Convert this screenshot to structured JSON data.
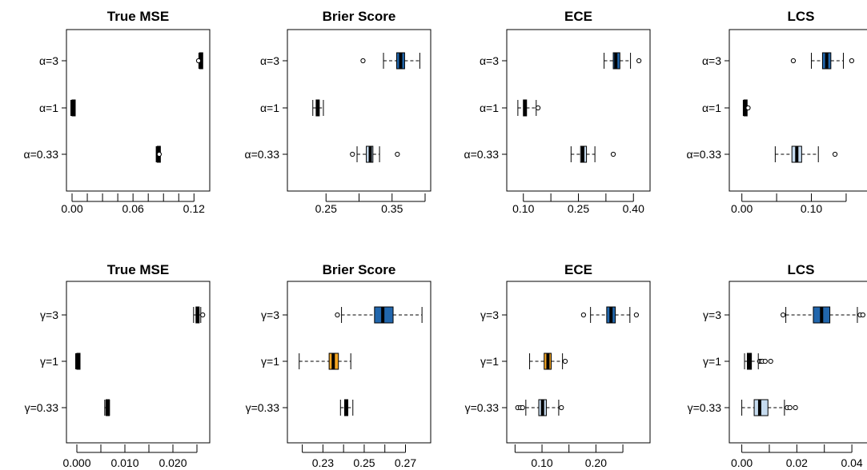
{
  "chart_data": [
    {
      "type": "boxplot",
      "orientation": "horizontal",
      "title": "True MSE",
      "categories": [
        "α=3",
        "α=1",
        "α=0.33"
      ],
      "xlim": [
        0.0,
        0.13
      ],
      "xticks": [
        0.0,
        0.03,
        0.06,
        0.09,
        0.12
      ],
      "xtick_labels": [
        "0.00",
        "",
        "0.06",
        "",
        "0.12"
      ],
      "xtick_minor": [
        0.015,
        0.045,
        0.075,
        0.105
      ],
      "boxes": [
        {
          "category": "α=3",
          "min": 0.125,
          "q1": 0.1255,
          "median": 0.126,
          "q3": 0.1265,
          "max": 0.127,
          "outliers": [
            0.1245
          ],
          "fill": "#000000"
        },
        {
          "category": "α=1",
          "min": 0.0,
          "q1": 0.0,
          "median": 0.0,
          "q3": 0.0,
          "max": 0.0,
          "outliers": [],
          "fill": "#000000"
        },
        {
          "category": "α=0.33",
          "min": 0.0835,
          "q1": 0.0838,
          "median": 0.084,
          "q3": 0.0843,
          "max": 0.0846,
          "outliers": [
            0.0858
          ],
          "fill": "#000000"
        }
      ]
    },
    {
      "type": "boxplot",
      "orientation": "horizontal",
      "title": "Brier Score",
      "categories": [
        "α=3",
        "α=1",
        "α=0.33"
      ],
      "xlim": [
        0.2,
        0.4
      ],
      "xticks": [
        0.25,
        0.3,
        0.35,
        0.4
      ],
      "xtick_labels": [
        "0.25",
        "",
        "0.35",
        ""
      ],
      "xtick_minor": [],
      "boxes": [
        {
          "category": "α=3",
          "min": 0.337,
          "q1": 0.357,
          "median": 0.363,
          "q3": 0.369,
          "max": 0.392,
          "outliers": [
            0.306
          ],
          "fill": "#2166ac"
        },
        {
          "category": "α=1",
          "min": 0.23,
          "q1": 0.235,
          "median": 0.237,
          "q3": 0.239,
          "max": 0.246,
          "outliers": [],
          "fill": "#000000"
        },
        {
          "category": "α=0.33",
          "min": 0.297,
          "q1": 0.311,
          "median": 0.317,
          "q3": 0.321,
          "max": 0.331,
          "outliers": [
            0.29,
            0.358
          ],
          "fill": "#c6dbef"
        }
      ]
    },
    {
      "type": "boxplot",
      "orientation": "horizontal",
      "title": "ECE",
      "categories": [
        "α=3",
        "α=1",
        "α=0.33"
      ],
      "xlim": [
        0.07,
        0.43
      ],
      "xticks": [
        0.1,
        0.175,
        0.25,
        0.325,
        0.4
      ],
      "xtick_labels": [
        "0.10",
        "",
        "0.25",
        "",
        "0.40"
      ],
      "xtick_minor": [],
      "boxes": [
        {
          "category": "α=3",
          "min": 0.32,
          "q1": 0.345,
          "median": 0.352,
          "q3": 0.363,
          "max": 0.392,
          "outliers": [
            0.415
          ],
          "fill": "#2166ac"
        },
        {
          "category": "α=1",
          "min": 0.085,
          "q1": 0.1,
          "median": 0.104,
          "q3": 0.108,
          "max": 0.135,
          "outliers": [
            0.14
          ],
          "fill": "#e69f00"
        },
        {
          "category": "α=0.33",
          "min": 0.23,
          "q1": 0.256,
          "median": 0.262,
          "q3": 0.272,
          "max": 0.295,
          "outliers": [
            0.345
          ],
          "fill": "#c6dbef"
        }
      ]
    },
    {
      "type": "boxplot",
      "orientation": "horizontal",
      "title": "LCS",
      "categories": [
        "α=3",
        "α=1",
        "α=0.33"
      ],
      "xlim": [
        -0.01,
        0.18
      ],
      "xticks": [
        0.0,
        0.05,
        0.1,
        0.15
      ],
      "xtick_labels": [
        "0.00",
        "",
        "0.10",
        ""
      ],
      "xtick_minor": [],
      "boxes": [
        {
          "category": "α=3",
          "min": 0.1,
          "q1": 0.116,
          "median": 0.122,
          "q3": 0.128,
          "max": 0.146,
          "outliers": [
            0.074,
            0.158
          ],
          "fill": "#2166ac"
        },
        {
          "category": "α=1",
          "min": 0.002,
          "q1": 0.003,
          "median": 0.004,
          "q3": 0.005,
          "max": 0.007,
          "outliers": [
            0.008,
            0.009
          ],
          "fill": "#000000"
        },
        {
          "category": "α=0.33",
          "min": 0.048,
          "q1": 0.072,
          "median": 0.079,
          "q3": 0.086,
          "max": 0.11,
          "outliers": [
            0.134
          ],
          "fill": "#c6dbef"
        }
      ]
    },
    {
      "type": "boxplot",
      "orientation": "horizontal",
      "title": "True MSE",
      "categories": [
        "γ=3",
        "γ=1",
        "γ=0.33"
      ],
      "xlim": [
        -0.001,
        0.0265
      ],
      "xticks": [
        0.0,
        0.005,
        0.01,
        0.015,
        0.02,
        0.025
      ],
      "xtick_labels": [
        "0.000",
        "",
        "0.010",
        "",
        "0.020",
        ""
      ],
      "xtick_minor": [],
      "boxes": [
        {
          "category": "γ=3",
          "min": 0.0243,
          "q1": 0.0248,
          "median": 0.0251,
          "q3": 0.0254,
          "max": 0.0258,
          "outliers": [
            0.0262
          ],
          "fill": "#000000"
        },
        {
          "category": "γ=1",
          "min": 0.0,
          "q1": 0.0,
          "median": 0.0,
          "q3": 0.0,
          "max": 0.0,
          "outliers": [],
          "fill": "#000000"
        },
        {
          "category": "γ=0.33",
          "min": 0.0058,
          "q1": 0.0061,
          "median": 0.0063,
          "q3": 0.0065,
          "max": 0.0068,
          "outliers": [],
          "fill": "#000000"
        }
      ]
    },
    {
      "type": "boxplot",
      "orientation": "horizontal",
      "title": "Brier Score",
      "categories": [
        "γ=3",
        "γ=1",
        "γ=0.33"
      ],
      "xlim": [
        0.2155,
        0.2795
      ],
      "xticks": [
        0.22,
        0.23,
        0.24,
        0.25,
        0.26,
        0.27
      ],
      "xtick_labels": [
        "",
        "0.23",
        "",
        "0.25",
        "",
        "0.27"
      ],
      "xtick_minor": [],
      "boxes": [
        {
          "category": "γ=3",
          "min": 0.239,
          "q1": 0.255,
          "median": 0.259,
          "q3": 0.264,
          "max": 0.278,
          "outliers": [
            0.237
          ],
          "fill": "#2166ac"
        },
        {
          "category": "γ=1",
          "min": 0.2185,
          "q1": 0.233,
          "median": 0.235,
          "q3": 0.2375,
          "max": 0.2435,
          "outliers": [],
          "fill": "#f5a623"
        },
        {
          "category": "γ=0.33",
          "min": 0.2385,
          "q1": 0.2405,
          "median": 0.2415,
          "q3": 0.242,
          "max": 0.2445,
          "outliers": [],
          "fill": "#000000"
        }
      ]
    },
    {
      "type": "boxplot",
      "orientation": "horizontal",
      "title": "ECE",
      "categories": [
        "γ=3",
        "γ=1",
        "γ=0.33"
      ],
      "xlim": [
        0.045,
        0.29
      ],
      "xticks": [
        0.05,
        0.1,
        0.15,
        0.2,
        0.25
      ],
      "xtick_labels": [
        "",
        "0.10",
        "",
        "0.20",
        ""
      ],
      "xtick_minor": [],
      "boxes": [
        {
          "category": "γ=3",
          "min": 0.19,
          "q1": 0.22,
          "median": 0.228,
          "q3": 0.236,
          "max": 0.263,
          "outliers": [
            0.177,
            0.275
          ],
          "fill": "#2166ac"
        },
        {
          "category": "γ=1",
          "min": 0.077,
          "q1": 0.104,
          "median": 0.111,
          "q3": 0.117,
          "max": 0.138,
          "outliers": [
            0.143
          ],
          "fill": "#f5a623"
        },
        {
          "category": "γ=0.33",
          "min": 0.07,
          "q1": 0.094,
          "median": 0.101,
          "q3": 0.108,
          "max": 0.131,
          "outliers": [
            0.055,
            0.06,
            0.064,
            0.136
          ],
          "fill": "#c6dbef"
        }
      ]
    },
    {
      "type": "boxplot",
      "orientation": "horizontal",
      "title": "LCS",
      "categories": [
        "γ=3",
        "γ=1",
        "γ=0.33"
      ],
      "xlim": [
        -0.0025,
        0.0455
      ],
      "xticks": [
        0.0,
        0.01,
        0.02,
        0.03,
        0.04
      ],
      "xtick_labels": [
        "0.00",
        "",
        "0.02",
        "",
        "0.04"
      ],
      "xtick_minor": [],
      "boxes": [
        {
          "category": "γ=3",
          "min": 0.016,
          "q1": 0.026,
          "median": 0.029,
          "q3": 0.032,
          "max": 0.042,
          "outliers": [
            0.015,
            0.043,
            0.044
          ],
          "fill": "#2166ac"
        },
        {
          "category": "γ=1",
          "min": 0.001,
          "q1": 0.002,
          "median": 0.0025,
          "q3": 0.0035,
          "max": 0.006,
          "outliers": [
            0.0065,
            0.007,
            0.0075,
            0.0085,
            0.0105
          ],
          "fill": "#000000"
        },
        {
          "category": "γ=0.33",
          "min": 0.0,
          "q1": 0.0045,
          "median": 0.0065,
          "q3": 0.0095,
          "max": 0.0155,
          "outliers": [
            0.0165,
            0.0175,
            0.0195
          ],
          "fill": "#c6dbef"
        }
      ]
    }
  ]
}
